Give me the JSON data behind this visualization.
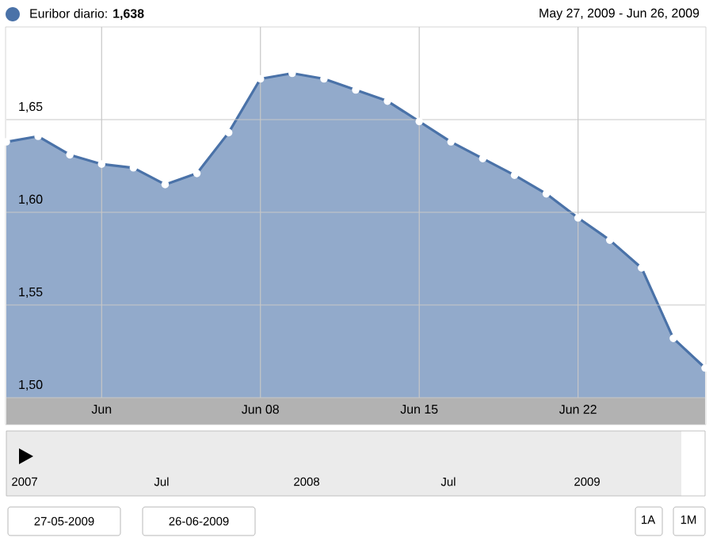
{
  "chart_data": {
    "type": "area",
    "title": "Euribor diario: **1,638**",
    "subtitle": "May 27, 2009 - Jun 26, 2009",
    "categories": [
      null,
      null,
      null,
      "Jun",
      null,
      null,
      null,
      null,
      "Jun 08",
      null,
      null,
      null,
      null,
      "Jun 15",
      null,
      null,
      null,
      null,
      "Jun 22",
      null,
      null,
      null,
      null
    ],
    "series": [
      {
        "color": "#4a72a8",
        "values": [
          1.638,
          1.641,
          1.631,
          1.626,
          1.624,
          1.615,
          1.621,
          1.643,
          1.672,
          1.675,
          1.672,
          1.666,
          1.66,
          1.649,
          1.638,
          1.629,
          1.62,
          1.61,
          1.597,
          1.585,
          1.57,
          1.532,
          1.516
        ]
      }
    ],
    "ylim": [
      1.5,
      1.7
    ],
    "yticks": [
      {
        "value": 1.5,
        "label": "1,50"
      },
      {
        "value": 1.55,
        "label": "1,55"
      },
      {
        "value": 1.6,
        "label": "1,60"
      },
      {
        "value": 1.65,
        "label": "1,65"
      }
    ],
    "grid": true,
    "marker": "circle",
    "line_style": "solid",
    "annotations": [
      "2007",
      "Jul",
      "2008",
      "Jul",
      "2009",
      "27-05-2009",
      "26-06-2009",
      "1A",
      "1M"
    ]
  }
}
